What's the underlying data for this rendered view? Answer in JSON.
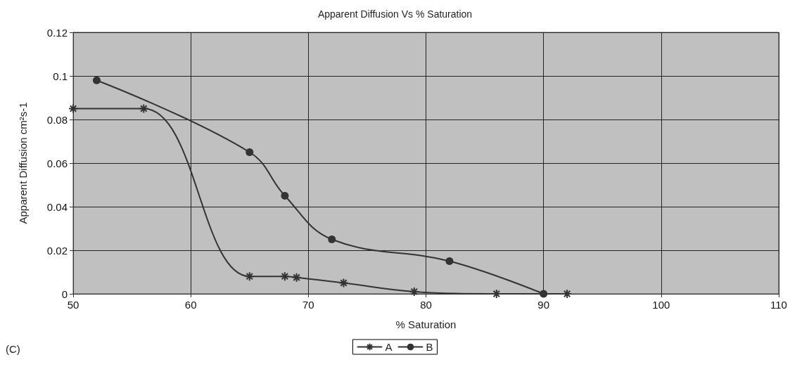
{
  "chart_data": {
    "type": "line",
    "title": "Apparent Diffusion Vs % Saturation",
    "xlabel": "% Saturation",
    "ylabel": "Apparent Diffusion cm²s-1",
    "annotations": [
      "(C)"
    ],
    "series": [
      {
        "name": "A",
        "color": "#333333",
        "marker": "cross",
        "x": [
          50,
          56,
          65,
          68,
          69,
          73,
          79,
          86,
          92
        ],
        "values": [
          0.085,
          0.085,
          0.008,
          0.008,
          0.0075,
          0.005,
          0.001,
          0,
          0
        ]
      },
      {
        "name": "B",
        "color": "#333333",
        "marker": "circle",
        "x": [
          52,
          65,
          68,
          72,
          82,
          90
        ],
        "values": [
          0.098,
          0.065,
          0.045,
          0.025,
          0.015,
          0
        ]
      }
    ],
    "xlim": [
      50,
      110
    ],
    "xticks": [
      50,
      60,
      70,
      80,
      90,
      100,
      110
    ],
    "ylim": [
      0,
      0.12
    ],
    "yticks": [
      0,
      0.02,
      0.04,
      0.06,
      0.08,
      0.1,
      0.12
    ],
    "grid": true,
    "legend": "bottom",
    "line_style": "solid"
  }
}
